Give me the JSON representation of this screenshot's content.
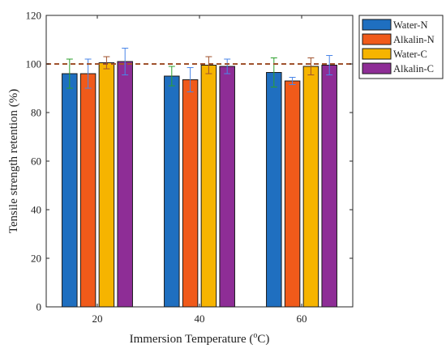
{
  "chart_data": {
    "type": "bar",
    "categories": [
      "20",
      "40",
      "60"
    ],
    "xlabel": "Immersion Temperature (",
    "xlabel_sup": "o",
    "xlabel_suffix": "C)",
    "ylabel": "Tensile strength retention (%)",
    "ylim": [
      0,
      120
    ],
    "yticks": [
      0,
      20,
      40,
      60,
      80,
      100,
      120
    ],
    "grid": false,
    "legend": "outside-right-top",
    "reference_line": {
      "y": 100,
      "style": "dashed",
      "color": "#a0522d"
    },
    "series": [
      {
        "name": "Water-N",
        "color": "#1f6fc0",
        "errorbar_color": "#2ca02c",
        "values": [
          96,
          95,
          96.5
        ],
        "errors": [
          6,
          4,
          6
        ]
      },
      {
        "name": "Alkalin-N",
        "color": "#f05a1a",
        "errorbar_color": "#4a86e8",
        "values": [
          96,
          93.5,
          93
        ],
        "errors": [
          6,
          5,
          1.5
        ]
      },
      {
        "name": "Water-C",
        "color": "#f6b400",
        "errorbar_color": "#a0522d",
        "values": [
          100.5,
          99.5,
          99
        ],
        "errors": [
          2.5,
          3.5,
          3.5
        ]
      },
      {
        "name": "Alkalin-C",
        "color": "#8e2d96",
        "errorbar_color": "#4a86e8",
        "values": [
          101,
          99,
          99.5
        ],
        "errors": [
          5.5,
          3,
          4
        ]
      }
    ]
  }
}
